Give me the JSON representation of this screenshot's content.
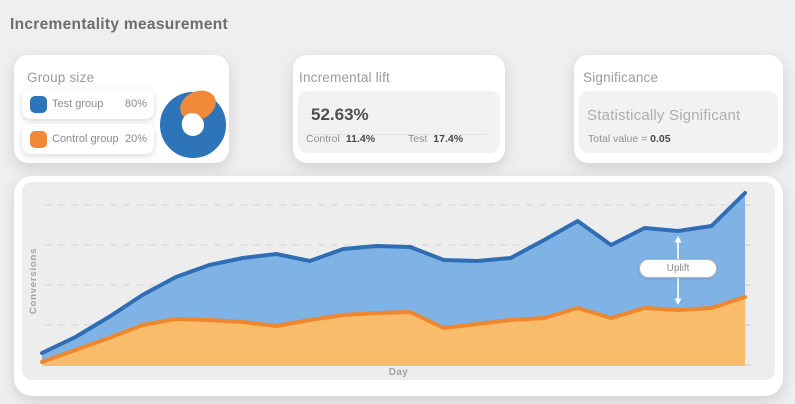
{
  "page": {
    "title": "Incrementality measurement"
  },
  "group_size_card": {
    "title": "Group size",
    "legend": [
      {
        "label": "Test group",
        "value": "80%",
        "color": "#2e74b8"
      },
      {
        "label": "Control group",
        "value": "20%",
        "color": "#f08a38"
      }
    ]
  },
  "incremental_lift_card": {
    "title": "Incremental lift",
    "lift_value": "52.63%",
    "control_label": "Control",
    "control_value": "11.4%",
    "test_label": "Test",
    "test_value": "17.4%"
  },
  "significance_card": {
    "title": "Significance",
    "status": "Statistically Significant",
    "detail_label": "Total value = ",
    "detail_value": "0.05"
  },
  "chart_data": {
    "type": "area",
    "xlabel": "Day",
    "ylabel": "Conversions",
    "x": [
      1,
      2,
      3,
      4,
      5,
      6,
      7,
      8,
      9,
      10,
      11,
      12,
      13,
      14,
      15,
      16,
      17,
      18,
      19,
      20,
      21,
      22
    ],
    "series": [
      {
        "name": "Test group",
        "stroke": "#2f6eb5",
        "fill": "#7fb3e5",
        "values": [
          3,
          7,
          12,
          17.5,
          22,
          25,
          26.75,
          27.75,
          26,
          29,
          29.75,
          29.5,
          26.25,
          26,
          26.75,
          31.25,
          36,
          30,
          34.25,
          33.5,
          34.75,
          43
        ]
      },
      {
        "name": "Control group",
        "stroke": "#f0862e",
        "fill": "#f9bc6a",
        "values": [
          0.75,
          3.75,
          6.75,
          10,
          11.5,
          11.25,
          10.75,
          9.75,
          11.25,
          12.5,
          13,
          13.25,
          9.25,
          10.25,
          11.25,
          11.75,
          14.25,
          11.75,
          14.25,
          13.75,
          14.25,
          17
        ]
      }
    ],
    "ylim": [
      0,
      45
    ],
    "y_gridlines": [
      10,
      20,
      30,
      40
    ],
    "grid_style": "dashed-horizontal",
    "legend_position": "none",
    "annotation": {
      "label": "Uplift",
      "day": 20
    }
  }
}
